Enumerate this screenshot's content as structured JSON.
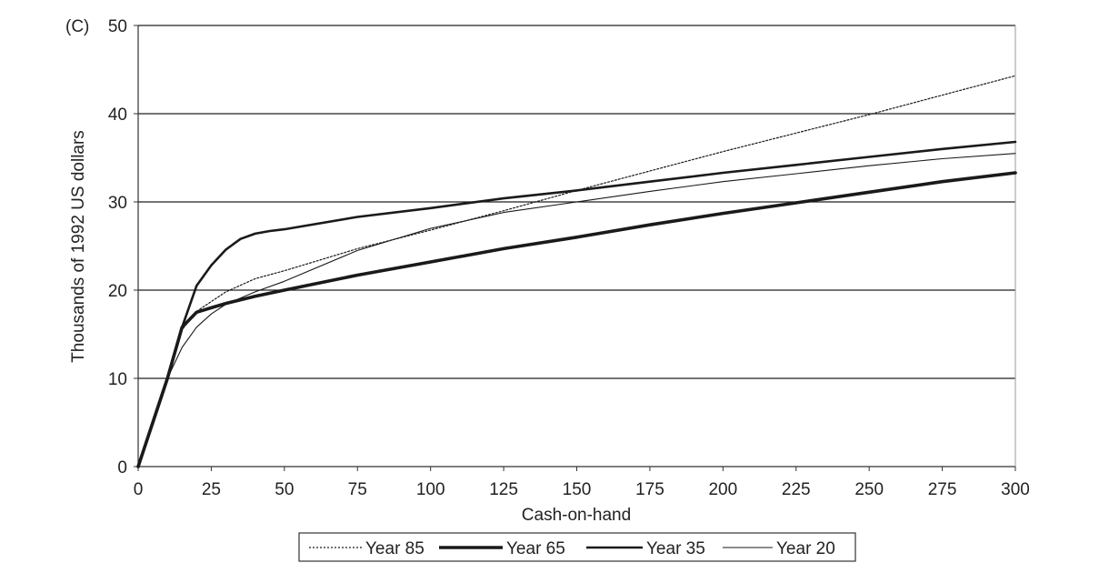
{
  "chart_data": {
    "type": "line",
    "panel_label": "(C)",
    "xlabel": "Cash-on-hand",
    "ylabel": "Thousands of 1992 US dollars",
    "xlim": [
      0,
      300
    ],
    "ylim": [
      0,
      50
    ],
    "x_ticks": [
      "0",
      "25",
      "50",
      "75",
      "100",
      "125",
      "150",
      "175",
      "200",
      "225",
      "250",
      "275",
      "300"
    ],
    "y_ticks": [
      "0",
      "10",
      "20",
      "30",
      "40",
      "50"
    ],
    "grid": "horizontal",
    "legend_position": "bottom",
    "series": [
      {
        "name": "Year 85",
        "style": "dotted",
        "x": [
          0,
          5,
          10,
          15,
          20,
          25,
          30,
          40,
          50,
          75,
          100,
          125,
          150,
          175,
          200,
          225,
          250,
          275,
          300
        ],
        "y": [
          0,
          5,
          10,
          15.5,
          17.6,
          18.7,
          19.8,
          21.3,
          22.2,
          24.7,
          26.8,
          29.0,
          31.3,
          33.5,
          35.7,
          37.8,
          39.9,
          42.1,
          44.3
        ]
      },
      {
        "name": "Year 65",
        "style": "extra-thick",
        "x": [
          0,
          5,
          10,
          15,
          20,
          25,
          30,
          40,
          50,
          75,
          100,
          125,
          150,
          175,
          200,
          225,
          250,
          275,
          300
        ],
        "y": [
          0,
          5,
          10,
          15.8,
          17.5,
          18.0,
          18.5,
          19.3,
          20.0,
          21.7,
          23.2,
          24.7,
          26.0,
          27.4,
          28.7,
          29.9,
          31.1,
          32.3,
          33.3
        ]
      },
      {
        "name": "Year 35",
        "style": "thick",
        "x": [
          0,
          5,
          10,
          15,
          20,
          25,
          30,
          35,
          40,
          45,
          50,
          75,
          100,
          125,
          150,
          175,
          200,
          225,
          250,
          275,
          300
        ],
        "y": [
          0,
          5,
          10,
          15.8,
          20.5,
          22.8,
          24.6,
          25.8,
          26.4,
          26.7,
          26.9,
          28.3,
          29.3,
          30.4,
          31.3,
          32.3,
          33.3,
          34.2,
          35.1,
          36.0,
          36.8
        ]
      },
      {
        "name": "Year 20",
        "style": "thin",
        "x": [
          0,
          5,
          10,
          15,
          20,
          25,
          30,
          40,
          50,
          75,
          100,
          125,
          150,
          175,
          200,
          225,
          250,
          275,
          300
        ],
        "y": [
          0,
          5,
          10,
          13.5,
          15.8,
          17.3,
          18.4,
          19.8,
          21.0,
          24.5,
          27.0,
          28.8,
          30.0,
          31.2,
          32.3,
          33.2,
          34.1,
          34.9,
          35.5
        ]
      }
    ]
  }
}
